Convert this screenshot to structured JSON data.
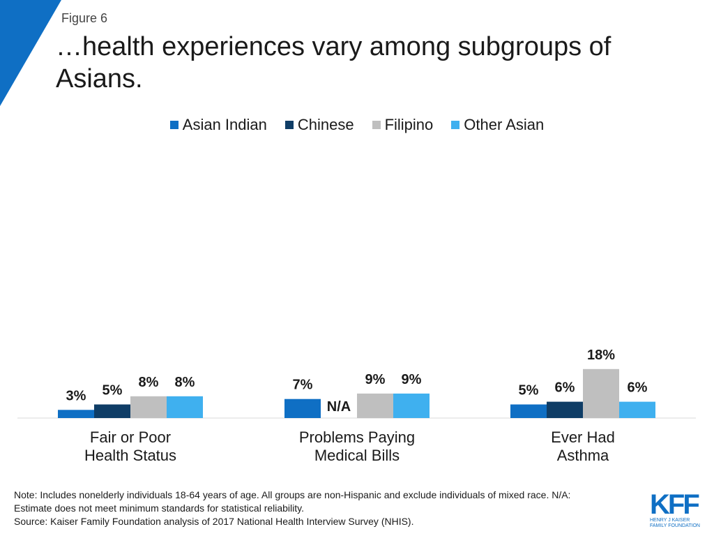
{
  "figure_label": "Figure 6",
  "title": "…health experiences vary among subgroups of Asians.",
  "colors": {
    "accent": "#0f6fc4",
    "series": [
      "#0f6fc4",
      "#0f3d66",
      "#bfbfbf",
      "#3fb0ef"
    ]
  },
  "legend": [
    {
      "label": "Asian Indian",
      "color": "#0f6fc4"
    },
    {
      "label": "Chinese",
      "color": "#0f3d66"
    },
    {
      "label": "Filipino",
      "color": "#bfbfbf"
    },
    {
      "label": "Other Asian",
      "color": "#3fb0ef"
    }
  ],
  "chart_data": {
    "type": "bar",
    "categories": [
      "Fair or Poor\nHealth Status",
      "Problems Paying\nMedical Bills",
      "Ever Had\nAsthma"
    ],
    "series": [
      {
        "name": "Asian Indian",
        "values": [
          3,
          7,
          5
        ],
        "labels": [
          "3%",
          "7%",
          "5%"
        ]
      },
      {
        "name": "Chinese",
        "values": [
          5,
          null,
          6
        ],
        "labels": [
          "5%",
          "N/A",
          "6%"
        ]
      },
      {
        "name": "Filipino",
        "values": [
          8,
          9,
          18
        ],
        "labels": [
          "8%",
          "9%",
          "18%"
        ]
      },
      {
        "name": "Other Asian",
        "values": [
          8,
          9,
          6
        ],
        "labels": [
          "8%",
          "9%",
          "6%"
        ]
      }
    ],
    "ylim": [
      0,
      100
    ],
    "grid": false,
    "legend_position": "top-center"
  },
  "footnote": {
    "line1": "Note: Includes nonelderly individuals 18-64 years of age. All groups are non-Hispanic and exclude individuals of mixed race. N/A:",
    "line2": "Estimate does not meet minimum standards for statistical reliability.",
    "line3": "Source: Kaiser Family Foundation analysis of 2017 National Health Interview Survey (NHIS)."
  },
  "logo": {
    "mark": "KFF",
    "line1": "Henry J Kaiser",
    "line2": "Family Foundation"
  }
}
